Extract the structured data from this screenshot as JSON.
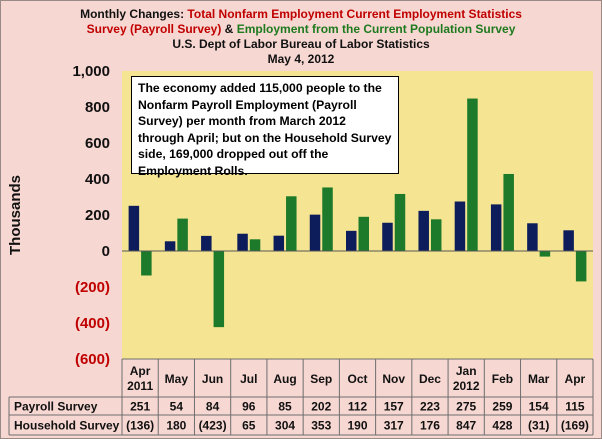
{
  "title": {
    "line1_prefix": "Monthly Changes: ",
    "line1_red": "Total Nonfarm Employment Current Employment Statistics",
    "line2_red": "Survey (Payroll Survey)",
    "line2_amp": " & ",
    "line2_green": "Employment from the Current Population Survey",
    "line3": "U.S. Dept of Labor Bureau of Labor Statistics",
    "line4": "May 4, 2012"
  },
  "annotation": "The  economy added 115,000 people to the Nonfarm Payroll Employment (Payroll Survey) per month from March 2012 through April; but on the Household Survey side, 169,000 dropped out off the Employment Rolls.",
  "colors": {
    "payroll": "#0d1d5c",
    "household": "#1c7a2a",
    "plot_bg": "#f5e592",
    "frame_bg": "#f6d7d2"
  },
  "chart_data": {
    "type": "bar",
    "title": "Monthly Changes: Total Nonfarm Employment Current Employment Statistics Survey (Payroll Survey) & Employment from the Current Population Survey",
    "xlabel": "",
    "ylabel": "Thousands",
    "ylim": [
      -600,
      1000
    ],
    "yticks": [
      -600,
      -400,
      -200,
      0,
      200,
      400,
      600,
      800,
      1000
    ],
    "ytick_labels": [
      "(600)",
      "(400)",
      "(200)",
      "0",
      "200",
      "400",
      "600",
      "800",
      "1,000"
    ],
    "categories": [
      [
        "Apr",
        "2011"
      ],
      [
        "May"
      ],
      [
        "Jun"
      ],
      [
        "Jul"
      ],
      [
        "Aug"
      ],
      [
        "Sep"
      ],
      [
        "Oct"
      ],
      [
        "Nov"
      ],
      [
        "Dec"
      ],
      [
        "Jan",
        "2012"
      ],
      [
        "Feb"
      ],
      [
        "Mar"
      ],
      [
        "Apr"
      ]
    ],
    "series": [
      {
        "name": "Payroll Survey",
        "values": [
          251,
          54,
          84,
          96,
          85,
          202,
          112,
          157,
          223,
          275,
          259,
          154,
          115
        ],
        "labels": [
          "251",
          "54",
          "84",
          "96",
          "85",
          "202",
          "112",
          "157",
          "223",
          "275",
          "259",
          "154",
          "115"
        ]
      },
      {
        "name": "Household Survey",
        "values": [
          -136,
          180,
          -423,
          65,
          304,
          353,
          190,
          317,
          176,
          847,
          428,
          -31,
          -169
        ],
        "labels": [
          "(136)",
          "180",
          "(423)",
          "65",
          "304",
          "353",
          "190",
          "317",
          "176",
          "847",
          "428",
          "(31)",
          "(169)"
        ]
      }
    ],
    "grid": false,
    "legend": "data table below chart"
  }
}
